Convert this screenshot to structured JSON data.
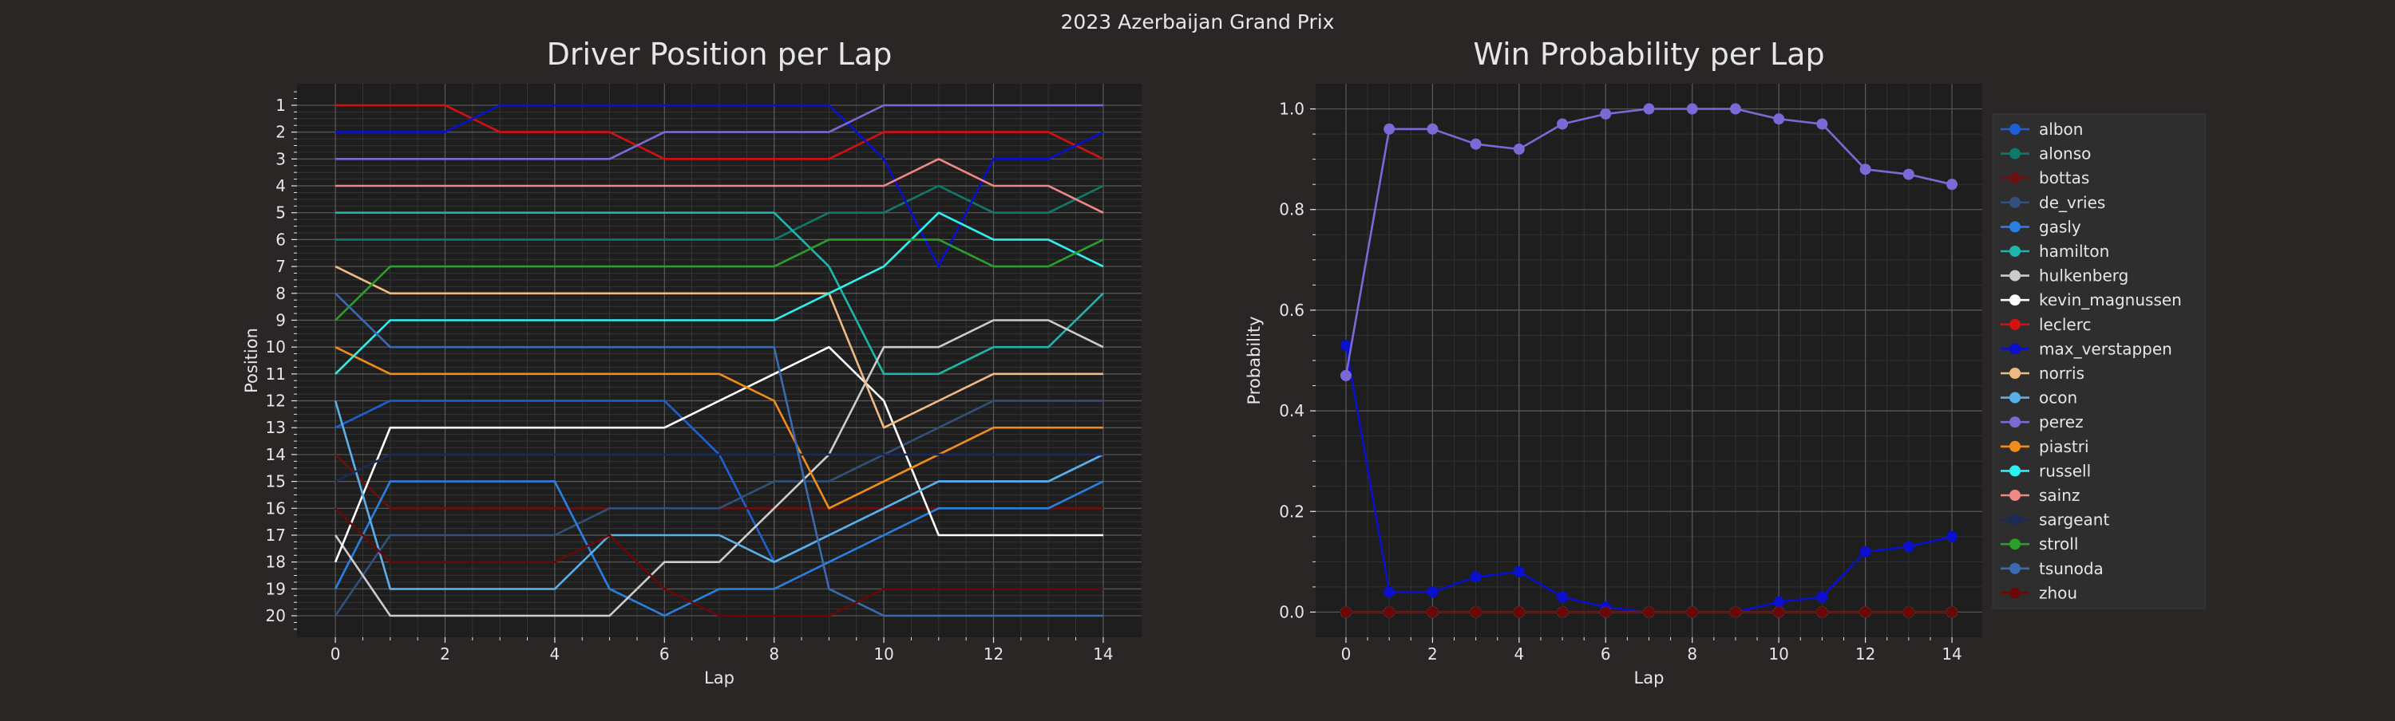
{
  "suptitle": "2023 Azerbaijan Grand Prix",
  "colors": {
    "background": "#292625",
    "axes_face": "#1e1e1e",
    "text": "#e6e6e6",
    "grid": "#5a5a5a"
  },
  "chart_data": [
    {
      "type": "line",
      "title": "Driver Position per Lap",
      "xlabel": "Lap",
      "ylabel": "Position",
      "x": [
        0,
        1,
        2,
        3,
        4,
        5,
        6,
        7,
        8,
        9,
        10,
        11,
        12,
        13,
        14
      ],
      "xticks": [
        "0",
        "2",
        "4",
        "6",
        "8",
        "10",
        "12",
        "14"
      ],
      "yticks": [
        "1",
        "2",
        "3",
        "4",
        "5",
        "6",
        "7",
        "8",
        "9",
        "10",
        "11",
        "12",
        "13",
        "14",
        "15",
        "16",
        "17",
        "18",
        "19",
        "20"
      ],
      "xlim": [
        -0.7,
        14.7
      ],
      "ylim": [
        20.8,
        0.2
      ],
      "y_inverted": true,
      "grid": true,
      "series": [
        {
          "color": "#1f5fd6",
          "values": [
            13,
            12,
            12,
            12,
            12,
            12,
            12,
            14,
            18,
            17,
            16,
            15,
            15,
            15,
            14
          ]
        },
        {
          "color": "#0f7a6a",
          "values": [
            6,
            6,
            6,
            6,
            6,
            6,
            6,
            6,
            6,
            5,
            5,
            4,
            5,
            5,
            4
          ]
        },
        {
          "color": "#6b1010",
          "values": [
            14,
            16,
            16,
            16,
            16,
            16,
            16,
            16,
            16,
            16,
            16,
            16,
            16,
            16,
            16
          ]
        },
        {
          "color": "#33507a",
          "values": [
            20,
            17,
            17,
            17,
            17,
            16,
            16,
            16,
            15,
            15,
            14,
            13,
            12,
            12,
            12
          ]
        },
        {
          "color": "#2a7fe0",
          "values": [
            19,
            15,
            15,
            15,
            15,
            19,
            20,
            19,
            19,
            18,
            17,
            16,
            16,
            16,
            15
          ]
        },
        {
          "color": "#1fb5aa",
          "values": [
            5,
            5,
            5,
            5,
            5,
            5,
            5,
            5,
            5,
            7,
            11,
            11,
            10,
            10,
            8
          ]
        },
        {
          "color": "#cccccc",
          "values": [
            17,
            20,
            20,
            20,
            20,
            20,
            18,
            18,
            16,
            14,
            10,
            10,
            9,
            9,
            10
          ]
        },
        {
          "color": "#ffffff",
          "values": [
            18,
            13,
            13,
            13,
            13,
            13,
            13,
            12,
            11,
            10,
            12,
            17,
            17,
            17,
            17
          ]
        },
        {
          "color": "#d41010",
          "values": [
            1,
            1,
            1,
            2,
            2,
            2,
            3,
            3,
            3,
            3,
            2,
            2,
            2,
            2,
            3
          ]
        },
        {
          "color": "#0a10cc",
          "values": [
            2,
            2,
            2,
            1,
            1,
            1,
            1,
            1,
            1,
            1,
            3,
            7,
            3,
            3,
            2
          ]
        },
        {
          "color": "#f0bb80",
          "values": [
            7,
            8,
            8,
            8,
            8,
            8,
            8,
            8,
            8,
            8,
            13,
            12,
            11,
            11,
            11
          ]
        },
        {
          "color": "#5bb0e8",
          "values": [
            12,
            19,
            19,
            19,
            19,
            17,
            17,
            17,
            18,
            17,
            16,
            15,
            15,
            15,
            14
          ]
        },
        {
          "color": "#7b6ad6",
          "values": [
            3,
            3,
            3,
            3,
            3,
            3,
            2,
            2,
            2,
            2,
            1,
            1,
            1,
            1,
            1
          ]
        },
        {
          "color": "#f08c1a",
          "values": [
            10,
            11,
            11,
            11,
            11,
            11,
            11,
            11,
            12,
            16,
            15,
            14,
            13,
            13,
            13
          ]
        },
        {
          "color": "#2ef0f0",
          "values": [
            11,
            9,
            9,
            9,
            9,
            9,
            9,
            9,
            9,
            8,
            7,
            5,
            6,
            6,
            7
          ]
        },
        {
          "color": "#f08888",
          "values": [
            4,
            4,
            4,
            4,
            4,
            4,
            4,
            4,
            4,
            4,
            4,
            3,
            4,
            4,
            5
          ]
        },
        {
          "color": "#1a2a5a",
          "values": [
            15,
            14,
            14,
            14,
            14,
            14,
            14,
            14,
            14,
            14,
            14,
            14,
            14,
            14,
            14
          ]
        },
        {
          "color": "#2aa02a",
          "values": [
            9,
            7,
            7,
            7,
            7,
            7,
            7,
            7,
            7,
            6,
            6,
            6,
            7,
            7,
            6
          ]
        },
        {
          "color": "#3a6ab0",
          "values": [
            8,
            10,
            10,
            10,
            10,
            10,
            10,
            10,
            10,
            19,
            20,
            20,
            20,
            20,
            20
          ]
        },
        {
          "color": "#6a0808",
          "values": [
            16,
            18,
            18,
            18,
            18,
            17,
            19,
            20,
            20,
            20,
            19,
            19,
            19,
            19,
            19
          ]
        }
      ]
    },
    {
      "type": "line",
      "title": "Win Probability per Lap",
      "xlabel": "Lap",
      "ylabel": "Probability",
      "x": [
        0,
        1,
        2,
        3,
        4,
        5,
        6,
        7,
        8,
        9,
        10,
        11,
        12,
        13,
        14
      ],
      "xticks": [
        "0",
        "2",
        "4",
        "6",
        "8",
        "10",
        "12",
        "14"
      ],
      "yticks": [
        "0.0",
        "0.2",
        "0.4",
        "0.6",
        "0.8",
        "1.0"
      ],
      "xlim": [
        -0.7,
        14.7
      ],
      "ylim": [
        -0.05,
        1.05
      ],
      "grid": true,
      "legend_position": "right, outside axes",
      "series": [
        {
          "name": "albon",
          "color": "#1f5fd6",
          "values": [
            0,
            0,
            0,
            0,
            0,
            0,
            0,
            0,
            0,
            0,
            0,
            0,
            0,
            0,
            0
          ]
        },
        {
          "name": "alonso",
          "color": "#0f7a6a",
          "values": [
            0,
            0,
            0,
            0,
            0,
            0,
            0,
            0,
            0,
            0,
            0,
            0,
            0,
            0,
            0
          ]
        },
        {
          "name": "bottas",
          "color": "#6b1010",
          "values": [
            0,
            0,
            0,
            0,
            0,
            0,
            0,
            0,
            0,
            0,
            0,
            0,
            0,
            0,
            0
          ]
        },
        {
          "name": "de_vries",
          "color": "#33507a",
          "values": [
            0,
            0,
            0,
            0,
            0,
            0,
            0,
            0,
            0,
            0,
            0,
            0,
            0,
            0,
            0
          ]
        },
        {
          "name": "gasly",
          "color": "#2a7fe0",
          "values": [
            0,
            0,
            0,
            0,
            0,
            0,
            0,
            0,
            0,
            0,
            0,
            0,
            0,
            0,
            0
          ]
        },
        {
          "name": "hamilton",
          "color": "#1fb5aa",
          "values": [
            0,
            0,
            0,
            0,
            0,
            0,
            0,
            0,
            0,
            0,
            0,
            0,
            0,
            0,
            0
          ]
        },
        {
          "name": "hulkenberg",
          "color": "#cccccc",
          "values": [
            0,
            0,
            0,
            0,
            0,
            0,
            0,
            0,
            0,
            0,
            0,
            0,
            0,
            0,
            0
          ]
        },
        {
          "name": "kevin_magnussen",
          "color": "#ffffff",
          "values": [
            0,
            0,
            0,
            0,
            0,
            0,
            0,
            0,
            0,
            0,
            0,
            0,
            0,
            0,
            0
          ]
        },
        {
          "name": "leclerc",
          "color": "#d41010",
          "values": [
            0,
            0,
            0,
            0,
            0,
            0,
            0,
            0,
            0,
            0,
            0,
            0,
            0,
            0,
            0
          ]
        },
        {
          "name": "max_verstappen",
          "color": "#0a10cc",
          "values": [
            0.53,
            0.04,
            0.04,
            0.07,
            0.08,
            0.03,
            0.01,
            0,
            0,
            0,
            0.02,
            0.03,
            0.12,
            0.13,
            0.15
          ]
        },
        {
          "name": "norris",
          "color": "#f0bb80",
          "values": [
            0,
            0,
            0,
            0,
            0,
            0,
            0,
            0,
            0,
            0,
            0,
            0,
            0,
            0,
            0
          ]
        },
        {
          "name": "ocon",
          "color": "#5bb0e8",
          "values": [
            0,
            0,
            0,
            0,
            0,
            0,
            0,
            0,
            0,
            0,
            0,
            0,
            0,
            0,
            0
          ]
        },
        {
          "name": "perez",
          "color": "#7b6ad6",
          "values": [
            0.47,
            0.96,
            0.96,
            0.93,
            0.92,
            0.97,
            0.99,
            1.0,
            1.0,
            1.0,
            0.98,
            0.97,
            0.88,
            0.87,
            0.85
          ]
        },
        {
          "name": "piastri",
          "color": "#f08c1a",
          "values": [
            0,
            0,
            0,
            0,
            0,
            0,
            0,
            0,
            0,
            0,
            0,
            0,
            0,
            0,
            0
          ]
        },
        {
          "name": "russell",
          "color": "#2ef0f0",
          "values": [
            0,
            0,
            0,
            0,
            0,
            0,
            0,
            0,
            0,
            0,
            0,
            0,
            0,
            0,
            0
          ]
        },
        {
          "name": "sainz",
          "color": "#f08888",
          "values": [
            0,
            0,
            0,
            0,
            0,
            0,
            0,
            0,
            0,
            0,
            0,
            0,
            0,
            0,
            0
          ]
        },
        {
          "name": "sargeant",
          "color": "#1a2a5a",
          "values": [
            0,
            0,
            0,
            0,
            0,
            0,
            0,
            0,
            0,
            0,
            0,
            0,
            0,
            0,
            0
          ]
        },
        {
          "name": "stroll",
          "color": "#2aa02a",
          "values": [
            0,
            0,
            0,
            0,
            0,
            0,
            0,
            0,
            0,
            0,
            0,
            0,
            0,
            0,
            0
          ]
        },
        {
          "name": "tsunoda",
          "color": "#3a6ab0",
          "values": [
            0,
            0,
            0,
            0,
            0,
            0,
            0,
            0,
            0,
            0,
            0,
            0,
            0,
            0,
            0
          ]
        },
        {
          "name": "zhou",
          "color": "#6a0808",
          "values": [
            0,
            0,
            0,
            0,
            0,
            0,
            0,
            0,
            0,
            0,
            0,
            0,
            0,
            0,
            0
          ]
        }
      ]
    }
  ]
}
